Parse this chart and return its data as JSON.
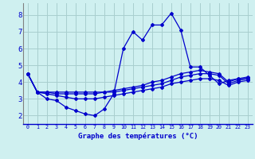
{
  "title": "Graphe des températures (°C)",
  "bg_color": "#cff0f0",
  "grid_color": "#a8cece",
  "line_color": "#0000cc",
  "spine_color": "#808080",
  "xaxis_color": "#0000cc",
  "xlim": [
    -0.5,
    23.5
  ],
  "ylim": [
    1.5,
    8.7
  ],
  "yticks": [
    2,
    3,
    4,
    5,
    6,
    7,
    8
  ],
  "x_labels": [
    "0",
    "1",
    "2",
    "3",
    "4",
    "5",
    "6",
    "7",
    "8",
    "9",
    "10",
    "11",
    "12",
    "13",
    "14",
    "15",
    "16",
    "17",
    "18",
    "19",
    "20",
    "21",
    "22",
    "23"
  ],
  "series": [
    [
      4.5,
      3.4,
      3.0,
      2.9,
      2.5,
      2.3,
      2.1,
      2.0,
      2.4,
      3.3,
      6.0,
      7.0,
      6.5,
      7.4,
      7.4,
      8.1,
      7.1,
      4.9,
      4.9,
      4.4,
      3.9,
      4.1,
      4.2,
      4.2
    ],
    [
      4.5,
      3.4,
      3.4,
      3.4,
      3.4,
      3.4,
      3.4,
      3.4,
      3.4,
      3.5,
      3.6,
      3.7,
      3.8,
      4.0,
      4.1,
      4.3,
      4.5,
      4.6,
      4.7,
      4.6,
      4.5,
      4.0,
      4.2,
      4.3
    ],
    [
      4.5,
      3.4,
      3.4,
      3.3,
      3.3,
      3.3,
      3.3,
      3.3,
      3.4,
      3.4,
      3.5,
      3.6,
      3.7,
      3.8,
      3.9,
      4.1,
      4.3,
      4.4,
      4.5,
      4.5,
      4.4,
      3.9,
      4.1,
      4.2
    ],
    [
      4.5,
      3.4,
      3.3,
      3.2,
      3.1,
      3.0,
      3.0,
      3.0,
      3.1,
      3.2,
      3.3,
      3.4,
      3.5,
      3.6,
      3.7,
      3.9,
      4.0,
      4.1,
      4.2,
      4.2,
      4.1,
      3.8,
      4.0,
      4.1
    ]
  ]
}
